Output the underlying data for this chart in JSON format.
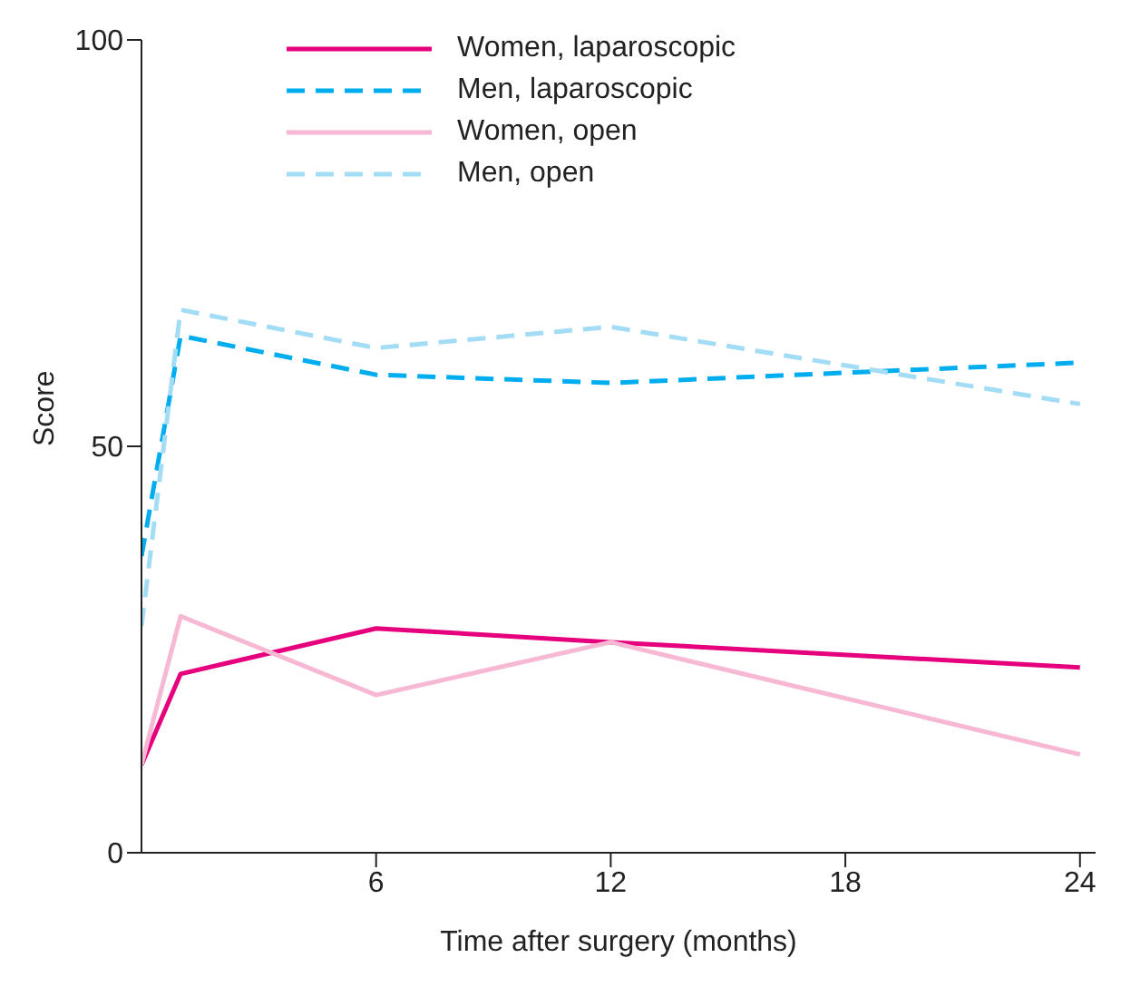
{
  "chart_data": {
    "type": "line",
    "xlabel": "Time after surgery (months)",
    "ylabel": "Score",
    "xlim": [
      0,
      24.4
    ],
    "xticks": [
      6,
      12,
      18,
      24
    ],
    "ylim": [
      0,
      100
    ],
    "yticks": [
      0,
      50,
      100
    ],
    "legend": "top",
    "grid": false,
    "marker": "none",
    "x": [
      0,
      1,
      6,
      12,
      24
    ],
    "series": [
      {
        "name": "Women, laparoscopic",
        "color": "#e6007e",
        "line_style": "solid",
        "values": [
          10.8,
          22,
          27.6,
          25.9,
          22.8
        ]
      },
      {
        "name": "Men, laparoscopic",
        "color": "#00aeef",
        "line_style": "dashed",
        "values": [
          36.5,
          63.6,
          58.8,
          57.8,
          60.3
        ]
      },
      {
        "name": "Women, open",
        "color": "#f7b8d4",
        "line_style": "solid",
        "values": [
          10.8,
          29.1,
          19.4,
          25.9,
          12.1
        ]
      },
      {
        "name": "Men, open",
        "color": "#a3dcf5",
        "line_style": "dashed",
        "values": [
          27.9,
          66.8,
          62.1,
          64.7,
          55.2
        ]
      }
    ]
  }
}
